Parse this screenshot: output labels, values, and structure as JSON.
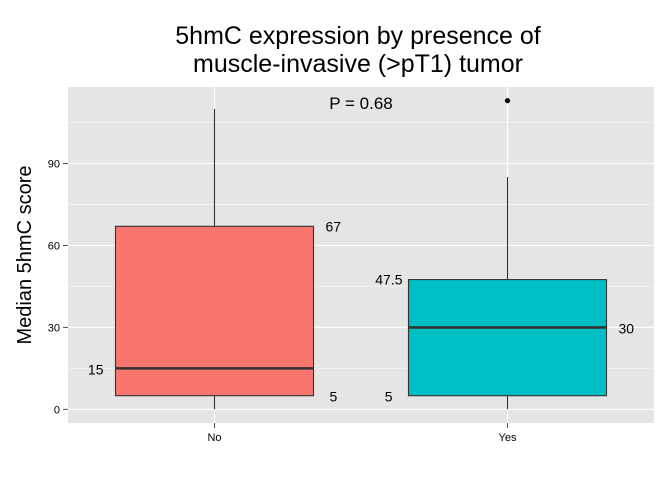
{
  "chart_data": {
    "type": "boxplot",
    "title_line1": "5hmC expression by presence of",
    "title_line2": "muscle-invasive (>pT1) tumor",
    "xlabel": "",
    "ylabel": "Median 5hmC score",
    "ylim": [
      -5,
      118
    ],
    "yticks": [
      0,
      30,
      60,
      90
    ],
    "categories": [
      "No",
      "Yes"
    ],
    "annotation": "P = 0.68",
    "boxes": [
      {
        "category": "No",
        "color": "#F8766D",
        "min": 0,
        "q1": 5,
        "median": 15,
        "q3": 67,
        "max": 110,
        "outliers": [],
        "labels": {
          "q1": "5",
          "median": "15",
          "q3": "67"
        }
      },
      {
        "category": "Yes",
        "color": "#00BFC4",
        "min": 0,
        "q1": 5,
        "median": 30,
        "q3": 47.5,
        "max": 85,
        "outliers": [
          113
        ],
        "labels": {
          "q1": "5",
          "median": "30",
          "q3": "47.5"
        }
      }
    ],
    "grid": true,
    "background": "#E5E5E5",
    "gridline_color": "#FFFFFF"
  }
}
